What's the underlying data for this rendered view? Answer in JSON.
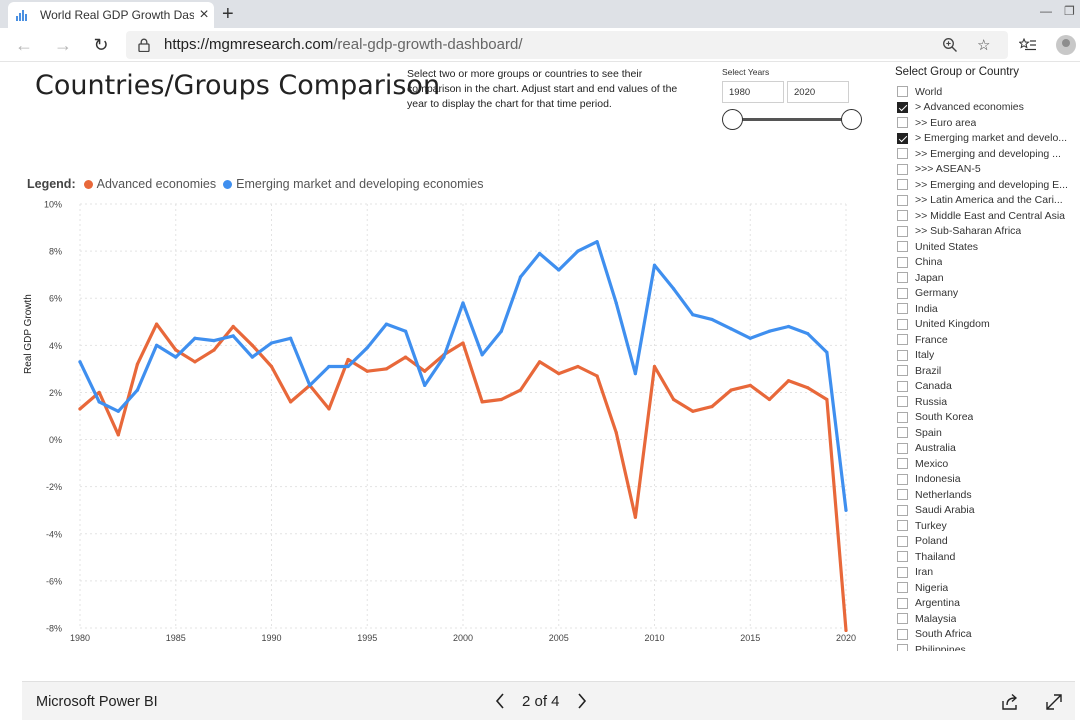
{
  "browser": {
    "tab_title": "World Real GDP Growth Dashboard",
    "tab_close": "×",
    "new_tab": "+",
    "url_host": "https://mgmresearch.com",
    "url_path": "/real-gdp-growth-dashboard/"
  },
  "report": {
    "title": "Countries/Groups Comparison",
    "instructions": "Select two or more groups or countries to see their comparison in the chart. Adjust start and end values of the year to display the chart for that time period."
  },
  "years": {
    "label": "Select Years",
    "start": "1980",
    "end": "2020"
  },
  "legend": {
    "title": "Legend:",
    "items": [
      {
        "label": "Advanced economies",
        "color": "#e8683a"
      },
      {
        "label": "Emerging market and developing economies",
        "color": "#3f8fef"
      }
    ]
  },
  "slicer": {
    "title": "Select Group or Country",
    "items": [
      {
        "label": "World",
        "checked": false
      },
      {
        "label": "> Advanced economies",
        "checked": true
      },
      {
        "label": ">> Euro area",
        "checked": false
      },
      {
        "label": "> Emerging market and develo...",
        "checked": true
      },
      {
        "label": ">> Emerging and developing ...",
        "checked": false
      },
      {
        "label": ">>> ASEAN-5",
        "checked": false
      },
      {
        "label": ">> Emerging and developing E...",
        "checked": false
      },
      {
        "label": ">> Latin America and the Cari...",
        "checked": false
      },
      {
        "label": ">> Middle East and Central Asia",
        "checked": false
      },
      {
        "label": ">> Sub-Saharan Africa",
        "checked": false
      },
      {
        "label": "United States",
        "checked": false
      },
      {
        "label": "China",
        "checked": false
      },
      {
        "label": "Japan",
        "checked": false
      },
      {
        "label": "Germany",
        "checked": false
      },
      {
        "label": "India",
        "checked": false
      },
      {
        "label": "United Kingdom",
        "checked": false
      },
      {
        "label": "France",
        "checked": false
      },
      {
        "label": "Italy",
        "checked": false
      },
      {
        "label": "Brazil",
        "checked": false
      },
      {
        "label": "Canada",
        "checked": false
      },
      {
        "label": "Russia",
        "checked": false
      },
      {
        "label": "South Korea",
        "checked": false
      },
      {
        "label": "Spain",
        "checked": false
      },
      {
        "label": "Australia",
        "checked": false
      },
      {
        "label": "Mexico",
        "checked": false
      },
      {
        "label": "Indonesia",
        "checked": false
      },
      {
        "label": "Netherlands",
        "checked": false
      },
      {
        "label": "Saudi Arabia",
        "checked": false
      },
      {
        "label": "Turkey",
        "checked": false
      },
      {
        "label": "Poland",
        "checked": false
      },
      {
        "label": "Thailand",
        "checked": false
      },
      {
        "label": "Iran",
        "checked": false
      },
      {
        "label": "Nigeria",
        "checked": false
      },
      {
        "label": "Argentina",
        "checked": false
      },
      {
        "label": "Malaysia",
        "checked": false
      },
      {
        "label": "South Africa",
        "checked": false
      },
      {
        "label": "Philippines",
        "checked": false
      }
    ]
  },
  "footer": {
    "brand": "Microsoft Power BI",
    "page_indicator": "2 of 4"
  },
  "chart_data": {
    "type": "line",
    "ylabel": "Real GDP Growth",
    "ylim": [
      -8,
      10
    ],
    "xlim": [
      1980,
      2020
    ],
    "y_ticks": [
      "10%",
      "8%",
      "6%",
      "4%",
      "2%",
      "0%",
      "-2%",
      "-4%",
      "-6%",
      "-8%"
    ],
    "x_ticks": [
      "1980",
      "1985",
      "1990",
      "1995",
      "2000",
      "2005",
      "2010",
      "2015",
      "2020"
    ],
    "grid": true,
    "x": [
      1980,
      1981,
      1982,
      1983,
      1984,
      1985,
      1986,
      1987,
      1988,
      1989,
      1990,
      1991,
      1992,
      1993,
      1994,
      1995,
      1996,
      1997,
      1998,
      1999,
      2000,
      2001,
      2002,
      2003,
      2004,
      2005,
      2006,
      2007,
      2008,
      2009,
      2010,
      2011,
      2012,
      2013,
      2014,
      2015,
      2016,
      2017,
      2018,
      2019,
      2020
    ],
    "series": [
      {
        "name": "Advanced economies",
        "color": "#e8683a",
        "values": [
          1.3,
          2.0,
          0.2,
          3.2,
          4.9,
          3.8,
          3.3,
          3.8,
          4.8,
          4.0,
          3.1,
          1.6,
          2.3,
          1.3,
          3.4,
          2.9,
          3.0,
          3.5,
          2.9,
          3.6,
          4.1,
          1.6,
          1.7,
          2.1,
          3.3,
          2.8,
          3.1,
          2.7,
          0.3,
          -3.3,
          3.1,
          1.7,
          1.2,
          1.4,
          2.1,
          2.3,
          1.7,
          2.5,
          2.2,
          1.7,
          -8.1
        ]
      },
      {
        "name": "Emerging market and developing economies",
        "color": "#3f8fef",
        "values": [
          3.3,
          1.6,
          1.2,
          2.1,
          4.0,
          3.5,
          4.3,
          4.2,
          4.4,
          3.5,
          4.1,
          4.3,
          2.3,
          3.1,
          3.1,
          3.9,
          4.9,
          4.6,
          2.3,
          3.5,
          5.8,
          3.6,
          4.6,
          6.9,
          7.9,
          7.2,
          8.0,
          8.4,
          5.8,
          2.8,
          7.4,
          6.4,
          5.3,
          5.1,
          4.7,
          4.3,
          4.6,
          4.8,
          4.5,
          3.7,
          -3.0
        ]
      }
    ]
  }
}
